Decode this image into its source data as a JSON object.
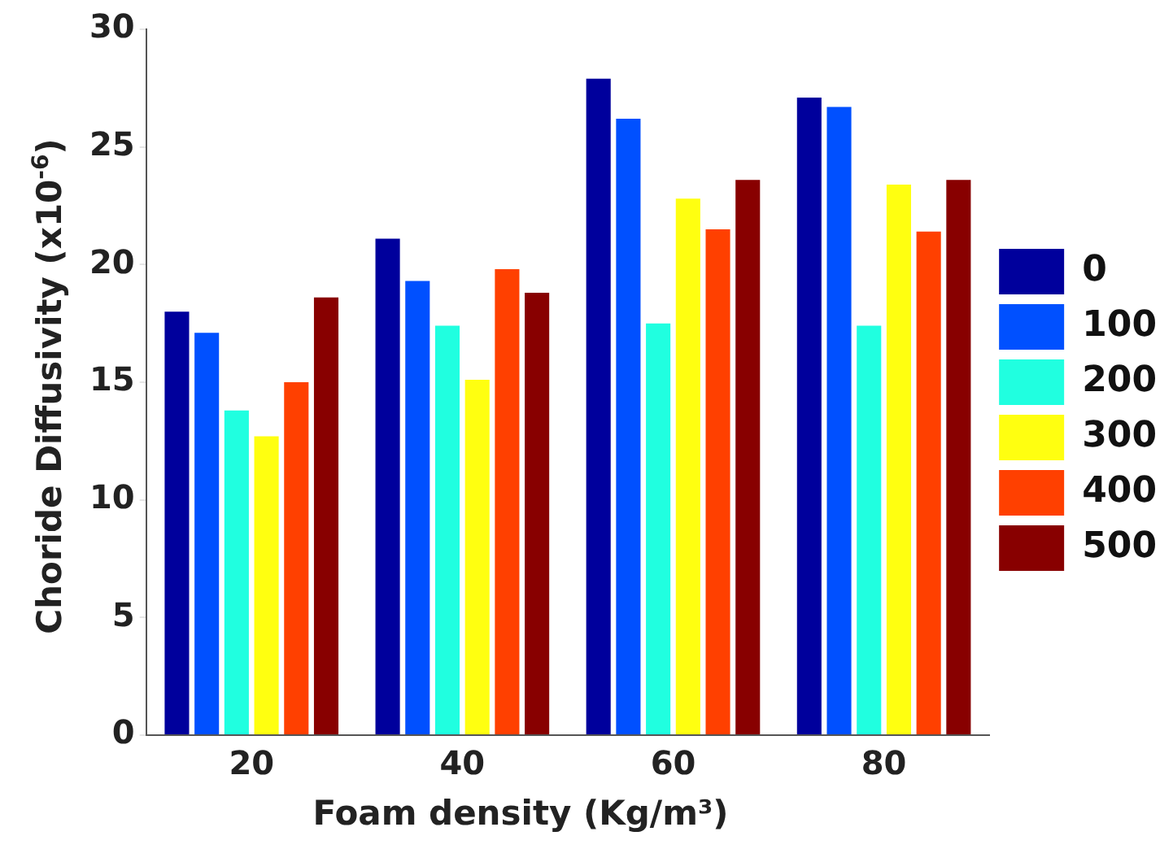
{
  "chart_data": {
    "type": "bar",
    "xlabel": "Foam density (Kg/m³)",
    "ylabel": "Choride Diffusivity (x10$^{-6}$)",
    "categories": [
      "20",
      "40",
      "60",
      "80"
    ],
    "series": [
      {
        "name": "0",
        "color": "#00009c",
        "values": [
          18.0,
          21.1,
          27.9,
          27.1
        ]
      },
      {
        "name": "100",
        "color": "#0050ff",
        "values": [
          17.1,
          19.3,
          26.2,
          26.7
        ]
      },
      {
        "name": "200",
        "color": "#20ffe0",
        "values": [
          13.8,
          17.4,
          17.5,
          17.4
        ]
      },
      {
        "name": "300",
        "color": "#ffff10",
        "values": [
          12.7,
          15.1,
          22.8,
          23.4
        ]
      },
      {
        "name": "400",
        "color": "#ff4000",
        "values": [
          15.0,
          19.8,
          21.5,
          21.4
        ]
      },
      {
        "name": "500",
        "color": "#880000",
        "values": [
          18.6,
          18.8,
          23.6,
          23.6
        ]
      }
    ],
    "ylim": [
      0,
      30
    ],
    "yticks": [
      0,
      5,
      10,
      15,
      20,
      25,
      30
    ],
    "grid": false,
    "legend": "right"
  }
}
